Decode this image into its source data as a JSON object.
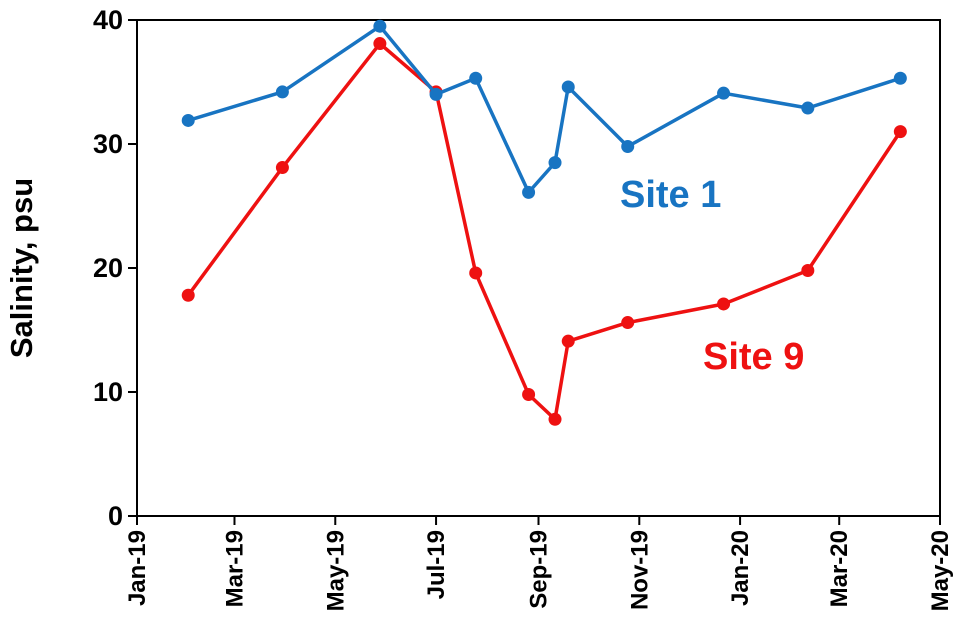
{
  "chart_data": {
    "type": "line",
    "title": "",
    "xlabel": "",
    "ylabel": "Salinity, psu",
    "ylim": [
      0,
      40
    ],
    "yticks": [
      0,
      10,
      20,
      30,
      40
    ],
    "xlim": [
      "2019-01-01",
      "2020-05-01"
    ],
    "xticks": [
      {
        "date": "2019-01-01",
        "label": "Jan-19"
      },
      {
        "date": "2019-03-01",
        "label": "Mar-19"
      },
      {
        "date": "2019-05-01",
        "label": "May-19"
      },
      {
        "date": "2019-07-01",
        "label": "Jul-19"
      },
      {
        "date": "2019-09-01",
        "label": "Sep-19"
      },
      {
        "date": "2019-11-01",
        "label": "Nov-19"
      },
      {
        "date": "2020-01-01",
        "label": "Jan-20"
      },
      {
        "date": "2020-03-01",
        "label": "Mar-20"
      },
      {
        "date": "2020-05-01",
        "label": "May-20"
      }
    ],
    "grid": false,
    "series": [
      {
        "name": "Site 1",
        "color": "#1874C2",
        "points": [
          {
            "x": "2019-02-01",
            "y": 31.9
          },
          {
            "x": "2019-03-30",
            "y": 34.2
          },
          {
            "x": "2019-05-28",
            "y": 39.5
          },
          {
            "x": "2019-07-01",
            "y": 34.0
          },
          {
            "x": "2019-07-25",
            "y": 35.3
          },
          {
            "x": "2019-08-26",
            "y": 26.1
          },
          {
            "x": "2019-09-11",
            "y": 28.5
          },
          {
            "x": "2019-09-19",
            "y": 34.6
          },
          {
            "x": "2019-10-25",
            "y": 29.8
          },
          {
            "x": "2019-12-22",
            "y": 34.1
          },
          {
            "x": "2020-02-11",
            "y": 32.9
          },
          {
            "x": "2020-04-07",
            "y": 35.3
          }
        ]
      },
      {
        "name": "Site 9",
        "color": "#EE1111",
        "points": [
          {
            "x": "2019-02-01",
            "y": 17.8
          },
          {
            "x": "2019-03-30",
            "y": 28.1
          },
          {
            "x": "2019-05-28",
            "y": 38.1
          },
          {
            "x": "2019-07-01",
            "y": 34.2
          },
          {
            "x": "2019-07-25",
            "y": 19.6
          },
          {
            "x": "2019-08-26",
            "y": 9.8
          },
          {
            "x": "2019-09-11",
            "y": 7.8
          },
          {
            "x": "2019-09-19",
            "y": 14.1
          },
          {
            "x": "2019-10-25",
            "y": 15.6
          },
          {
            "x": "2019-12-22",
            "y": 17.1
          },
          {
            "x": "2020-02-11",
            "y": 19.8
          },
          {
            "x": "2020-04-07",
            "y": 31.0
          }
        ]
      }
    ]
  }
}
